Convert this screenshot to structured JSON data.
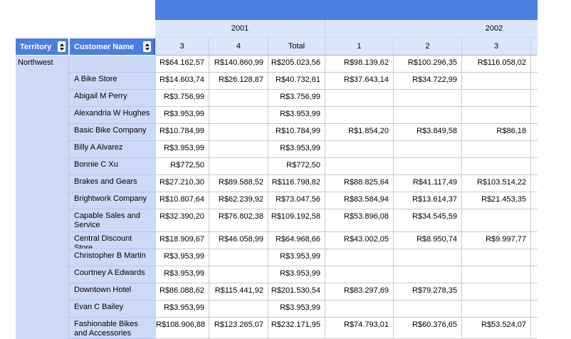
{
  "matrix": {
    "row_headers": {
      "territory": "Territory",
      "customer": "Customer Name"
    },
    "year_groups": [
      {
        "label": "2001",
        "columns": [
          "3",
          "4",
          "Total"
        ]
      },
      {
        "label": "2002",
        "columns": [
          "1",
          "2",
          "3"
        ]
      }
    ],
    "territory": "Northwest",
    "rows": [
      {
        "customer": "",
        "values": [
          "R$64.162,57",
          "R$140.860,99",
          "R$205.023,56",
          "R$98.139,62",
          "R$100.296,35",
          "R$116.058,02"
        ]
      },
      {
        "customer": "A Bike Store",
        "values": [
          "R$14.603,74",
          "R$26.128,87",
          "R$40.732,61",
          "R$37.643,14",
          "R$34.722,99",
          ""
        ]
      },
      {
        "customer": "Abigail M Perry",
        "values": [
          "R$3.756,99",
          "",
          "R$3.756,99",
          "",
          "",
          ""
        ]
      },
      {
        "customer": "Alexandria W Hughes",
        "values": [
          "R$3.953,99",
          "",
          "R$3.953,99",
          "",
          "",
          ""
        ]
      },
      {
        "customer": "Basic Bike Company",
        "values": [
          "R$10.784,99",
          "",
          "R$10.784,99",
          "R$1.854,20",
          "R$3.849,58",
          "R$86,18"
        ]
      },
      {
        "customer": "Billy A Alvarez",
        "values": [
          "R$3.953,99",
          "",
          "R$3.953,99",
          "",
          "",
          ""
        ]
      },
      {
        "customer": "Bonnie C Xu",
        "values": [
          "R$772,50",
          "",
          "R$772,50",
          "",
          "",
          ""
        ]
      },
      {
        "customer": "Brakes and Gears",
        "values": [
          "R$27.210,30",
          "R$89.588,52",
          "R$116.798,82",
          "R$88.825,64",
          "R$41.117,49",
          "R$103.514,22"
        ]
      },
      {
        "customer": "Brightwork Company",
        "values": [
          "R$10.807,64",
          "R$62.239,92",
          "R$73.047,56",
          "R$83.584,94",
          "R$13.614,37",
          "R$21.453,35"
        ]
      },
      {
        "customer": "Capable Sales and Service",
        "values": [
          "R$32.390,20",
          "R$76.802,38",
          "R$109.192,58",
          "R$53.896,08",
          "R$34.545,59",
          ""
        ]
      },
      {
        "customer": "Central Discount Store",
        "values": [
          "R$18.909,67",
          "R$46.058,99",
          "R$64.968,66",
          "R$43.002,05",
          "R$8.950,74",
          "R$9.997,77"
        ]
      },
      {
        "customer": "Christopher B Martin",
        "values": [
          "R$3.953,99",
          "",
          "R$3.953,99",
          "",
          "",
          ""
        ]
      },
      {
        "customer": "Courtney A Edwards",
        "values": [
          "R$3.953,99",
          "",
          "R$3.953,99",
          "",
          "",
          ""
        ]
      },
      {
        "customer": "Downtown Hotel",
        "values": [
          "R$86.088,62",
          "R$115.441,92",
          "R$201.530,54",
          "R$83.297,69",
          "R$79.278,35",
          ""
        ]
      },
      {
        "customer": "Evan C Bailey",
        "values": [
          "R$3.953,99",
          "",
          "R$3.953,99",
          "",
          "",
          ""
        ]
      },
      {
        "customer": "Fashionable Bikes and Accessories",
        "values": [
          "R$108.906,88",
          "R$123.265,07",
          "R$232.171,95",
          "R$74.793,01",
          "R$60.376,65",
          "R$53.524,07"
        ]
      }
    ],
    "icons": {
      "sort": "sort-up-down-icon"
    },
    "colors": {
      "accent_blue": "#4a7ee0",
      "header_light_blue": "#dce6fa",
      "group_cell_blue": "#ccd9f7",
      "gridline_gray": "#c9c9c9"
    }
  }
}
